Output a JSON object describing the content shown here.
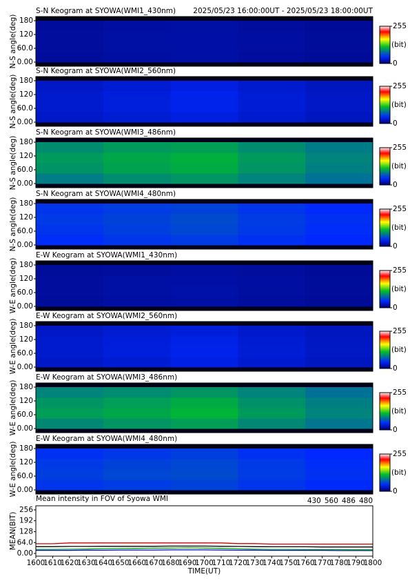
{
  "chart_data": [
    {
      "type": "heatmap",
      "title": "S-N Keogram at SYOWA(WMI1_430nm)",
      "subtitle": "2025/05/23 16:00:00UT - 2025/05/23 18:00:00UT",
      "ylabel": "N-S angle(deg)",
      "x_bins": [
        1600,
        1640,
        1680,
        1720,
        1760,
        1800
      ],
      "y_bins": [
        0,
        45,
        90,
        135,
        180
      ],
      "ylim": [
        -18,
        198
      ],
      "yticks": [
        {
          "value": 0,
          "label": "0.00"
        },
        {
          "value": 60,
          "label": "60.0"
        },
        120,
        180
      ],
      "values": [
        [
          14,
          16,
          17,
          15,
          13
        ],
        [
          15,
          17,
          18,
          16,
          14
        ],
        [
          15,
          17,
          18,
          16,
          14
        ],
        [
          14,
          16,
          17,
          15,
          13
        ]
      ],
      "clim": [
        0,
        255
      ],
      "cticks": [
        0,
        255
      ],
      "clabel": "(bit)"
    },
    {
      "type": "heatmap",
      "title": "S-N Keogram at SYOWA(WMI2_560nm)",
      "ylabel": "N-S angle(deg)",
      "x_bins": [
        1600,
        1640,
        1680,
        1720,
        1760,
        1800
      ],
      "y_bins": [
        0,
        45,
        90,
        135,
        180
      ],
      "ylim": [
        -18,
        198
      ],
      "yticks": [
        {
          "value": 0,
          "label": "0.00"
        },
        {
          "value": 60,
          "label": "60.0"
        },
        120,
        180
      ],
      "values": [
        [
          28,
          32,
          36,
          30,
          26
        ],
        [
          30,
          35,
          40,
          33,
          28
        ],
        [
          30,
          35,
          40,
          33,
          28
        ],
        [
          28,
          32,
          36,
          30,
          26
        ]
      ],
      "clim": [
        0,
        255
      ],
      "cticks": [
        0,
        255
      ],
      "clabel": "(bit)"
    },
    {
      "type": "heatmap",
      "title": "S-N Keogram at SYOWA(WMI3_486nm)",
      "ylabel": "N-S angle(deg)",
      "x_bins": [
        1600,
        1640,
        1680,
        1720,
        1760,
        1800
      ],
      "y_bins": [
        0,
        45,
        90,
        135,
        180
      ],
      "ylim": [
        -18,
        198
      ],
      "yticks": [
        {
          "value": 0,
          "label": "0.00"
        },
        {
          "value": 60,
          "label": "60.0"
        },
        120,
        180
      ],
      "values": [
        [
          85,
          92,
          96,
          88,
          80
        ],
        [
          95,
          102,
          106,
          96,
          86
        ],
        [
          98,
          104,
          108,
          98,
          88
        ],
        [
          92,
          98,
          100,
          92,
          84
        ]
      ],
      "clim": [
        0,
        255
      ],
      "cticks": [
        0,
        255
      ],
      "clabel": "(bit)"
    },
    {
      "type": "heatmap",
      "title": "S-N Keogram at SYOWA(WMI4_480nm)",
      "ylabel": "N-S angle(deg)",
      "x_bins": [
        1600,
        1640,
        1680,
        1720,
        1760,
        1800
      ],
      "y_bins": [
        0,
        45,
        90,
        135,
        180
      ],
      "ylim": [
        -18,
        198
      ],
      "yticks": [
        {
          "value": 0,
          "label": "0.00"
        },
        {
          "value": 60,
          "label": "60.0"
        },
        120,
        180
      ],
      "values": [
        [
          48,
          52,
          55,
          50,
          45
        ],
        [
          52,
          56,
          60,
          54,
          48
        ],
        [
          54,
          58,
          62,
          55,
          50
        ],
        [
          52,
          55,
          58,
          52,
          47
        ]
      ],
      "clim": [
        0,
        255
      ],
      "cticks": [
        0,
        255
      ],
      "clabel": "(bit)"
    },
    {
      "type": "heatmap",
      "title": "E-W Keogram at SYOWA(WMI1_430nm)",
      "ylabel": "W-E angle(deg)",
      "x_bins": [
        1600,
        1640,
        1680,
        1720,
        1760,
        1800
      ],
      "y_bins": [
        0,
        45,
        90,
        135,
        180
      ],
      "ylim": [
        -18,
        198
      ],
      "yticks": [
        {
          "value": 0,
          "label": "0.00"
        },
        {
          "value": 60,
          "label": "60.0"
        },
        120,
        180
      ],
      "values": [
        [
          14,
          16,
          17,
          15,
          13
        ],
        [
          15,
          17,
          19,
          16,
          14
        ],
        [
          15,
          17,
          18,
          16,
          14
        ],
        [
          14,
          15,
          16,
          15,
          13
        ]
      ],
      "clim": [
        0,
        255
      ],
      "cticks": [
        0,
        255
      ],
      "clabel": "(bit)"
    },
    {
      "type": "heatmap",
      "title": "E-W Keogram at SYOWA(WMI2_560nm)",
      "ylabel": "W-E angle(deg)",
      "x_bins": [
        1600,
        1640,
        1680,
        1720,
        1760,
        1800
      ],
      "y_bins": [
        0,
        45,
        90,
        135,
        180
      ],
      "ylim": [
        -18,
        198
      ],
      "yticks": [
        {
          "value": 0,
          "label": "0.00"
        },
        {
          "value": 60,
          "label": "60.0"
        },
        120,
        180
      ],
      "values": [
        [
          28,
          32,
          37,
          30,
          26
        ],
        [
          30,
          35,
          40,
          33,
          28
        ],
        [
          30,
          34,
          38,
          32,
          27
        ],
        [
          28,
          31,
          34,
          29,
          26
        ]
      ],
      "clim": [
        0,
        255
      ],
      "cticks": [
        0,
        255
      ],
      "clabel": "(bit)"
    },
    {
      "type": "heatmap",
      "title": "E-W Keogram at SYOWA(WMI3_486nm)",
      "ylabel": "W-E angle(deg)",
      "x_bins": [
        1600,
        1640,
        1680,
        1720,
        1760,
        1800
      ],
      "y_bins": [
        0,
        45,
        90,
        135,
        180
      ],
      "ylim": [
        -18,
        198
      ],
      "yticks": [
        {
          "value": 0,
          "label": "0.00"
        },
        {
          "value": 60,
          "label": "60.0"
        },
        120,
        180
      ],
      "values": [
        [
          90,
          96,
          100,
          90,
          82
        ],
        [
          100,
          104,
          110,
          98,
          88
        ],
        [
          96,
          100,
          106,
          94,
          86
        ],
        [
          88,
          92,
          96,
          88,
          80
        ]
      ],
      "clim": [
        0,
        255
      ],
      "cticks": [
        0,
        255
      ],
      "clabel": "(bit)"
    },
    {
      "type": "heatmap",
      "title": "E-W Keogram at SYOWA(WMI4_480nm)",
      "ylabel": "W-E angle(deg)",
      "x_bins": [
        1600,
        1640,
        1680,
        1720,
        1760,
        1800
      ],
      "y_bins": [
        0,
        45,
        90,
        135,
        180
      ],
      "ylim": [
        -18,
        198
      ],
      "yticks": [
        {
          "value": 0,
          "label": "0.00"
        },
        {
          "value": 60,
          "label": "60.0"
        },
        120,
        180
      ],
      "values": [
        [
          52,
          55,
          58,
          52,
          47
        ],
        [
          56,
          60,
          62,
          55,
          50
        ],
        [
          54,
          58,
          60,
          54,
          48
        ],
        [
          50,
          53,
          56,
          50,
          46
        ]
      ],
      "clim": [
        0,
        255
      ],
      "cticks": [
        0,
        255
      ],
      "clabel": "(bit)"
    },
    {
      "type": "line",
      "title": "Mean intensity in FOV of Syowa WMI",
      "xlabel": "TIME(UT)",
      "ylabel": "MEAN(BIT)",
      "x": [
        1600,
        1610,
        1620,
        1630,
        1640,
        1650,
        1660,
        1670,
        1680,
        1690,
        1700,
        1710,
        1720,
        1730,
        1740,
        1750,
        1760,
        1770,
        1780,
        1790,
        1800
      ],
      "xlim": [
        1600,
        1800
      ],
      "xticks": [
        1600,
        1610,
        1620,
        1630,
        1640,
        1650,
        1660,
        1670,
        1680,
        1690,
        1700,
        1710,
        1720,
        1730,
        1740,
        1750,
        1760,
        1770,
        1780,
        1790,
        1800
      ],
      "ylim": [
        -16,
        280
      ],
      "yticks": [
        {
          "value": 0,
          "label": "0.00"
        },
        {
          "value": 64,
          "label": "64.0"
        },
        128,
        192,
        256
      ],
      "series": [
        {
          "name": "430",
          "color": "#0000cc",
          "values": [
            18,
            18,
            18,
            19,
            19,
            20,
            20,
            20,
            21,
            21,
            21,
            20,
            19,
            19,
            18,
            18,
            18,
            18,
            17,
            17,
            17
          ]
        },
        {
          "name": "560",
          "color": "#00aa00",
          "values": [
            24,
            24,
            25,
            26,
            28,
            29,
            30,
            31,
            32,
            33,
            32,
            30,
            27,
            25,
            24,
            24,
            23,
            23,
            23,
            22,
            22
          ]
        },
        {
          "name": "486",
          "color": "#cc0000",
          "values": [
            57,
            57,
            62,
            62,
            62,
            62,
            62,
            62,
            62,
            62,
            62,
            62,
            58,
            58,
            55,
            55,
            55,
            55,
            55,
            55,
            55
          ]
        },
        {
          "name": "480",
          "color": "#000000",
          "values": [
            40,
            40,
            41,
            41,
            42,
            42,
            42,
            42,
            43,
            43,
            43,
            42,
            41,
            40,
            39,
            39,
            39,
            38,
            38,
            38,
            38
          ]
        }
      ]
    }
  ]
}
